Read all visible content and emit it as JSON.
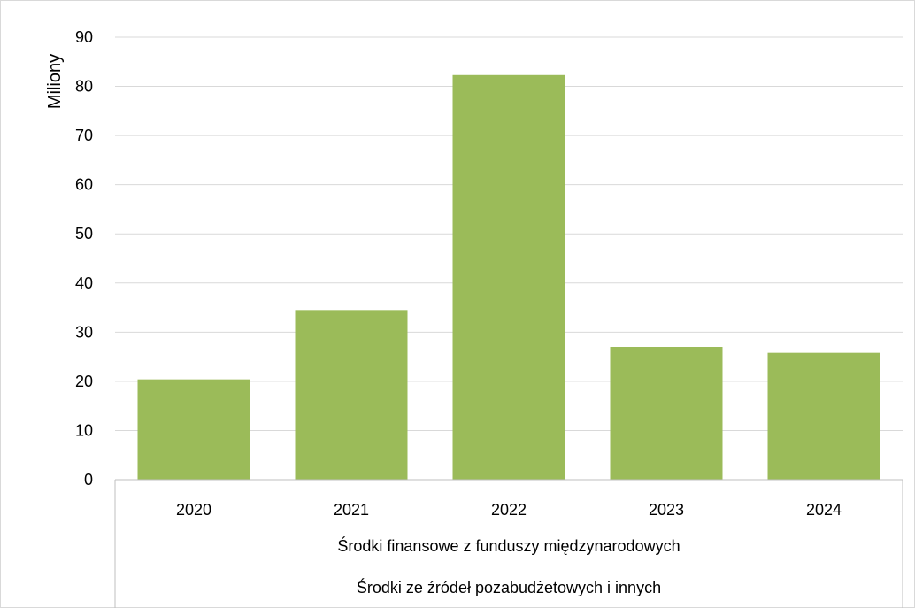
{
  "chart_data": {
    "type": "bar",
    "categories": [
      "2020",
      "2021",
      "2022",
      "2023",
      "2024"
    ],
    "values": [
      20.4,
      34.5,
      82.3,
      27.0,
      25.8
    ],
    "ylabel": "Miliony",
    "ylim": [
      0,
      90
    ],
    "yticks": [
      0,
      10,
      20,
      30,
      40,
      50,
      60,
      70,
      80,
      90
    ],
    "grid": true,
    "x_group_labels": [
      "Środki finansowe z funduszy międzynarodowych",
      "Środki ze źródeł pozabudżetowych i innych"
    ],
    "colors": {
      "bar": "#9bbb59",
      "grid": "#d9d9d9",
      "axis": "#bfbfbf"
    }
  }
}
